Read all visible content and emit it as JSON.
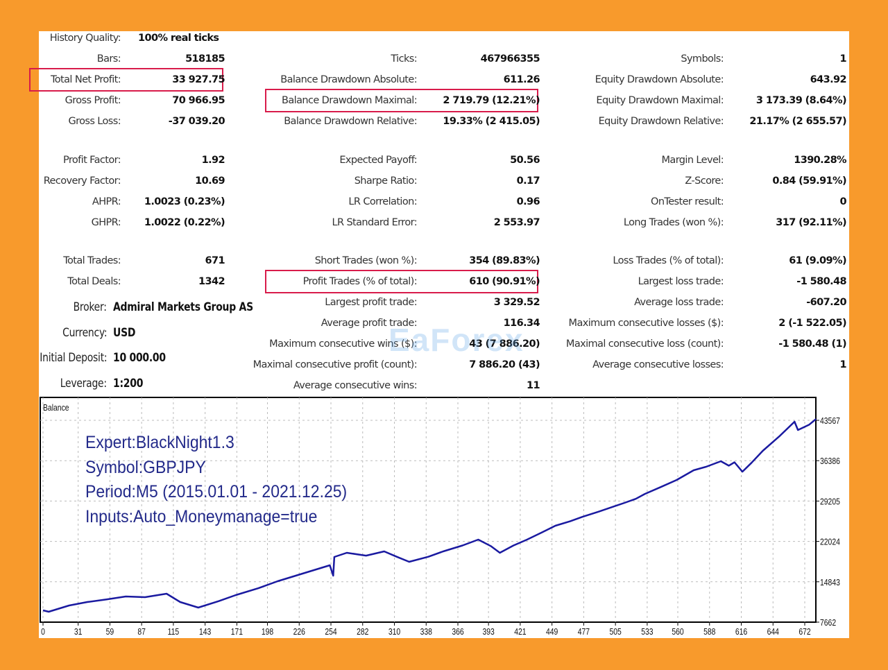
{
  "report": {
    "col1": [
      {
        "label": "History Quality:",
        "value": "100% real ticks",
        "left_value": true
      },
      {
        "label": "Bars:",
        "value": "518185"
      },
      {
        "label": "Total Net Profit:",
        "value": "33 927.75",
        "highlight": true
      },
      {
        "label": "Gross Profit:",
        "value": "70 966.95"
      },
      {
        "label": "Gross Loss:",
        "value": "-37 039.20"
      },
      {
        "label": "Profit Factor:",
        "value": "1.92"
      },
      {
        "label": "Recovery Factor:",
        "value": "10.69"
      },
      {
        "label": "AHPR:",
        "value": "1.0023 (0.23%)"
      },
      {
        "label": "GHPR:",
        "value": "1.0022 (0.22%)"
      },
      {
        "label": "Total Trades:",
        "value": "671"
      },
      {
        "label": "Total Deals:",
        "value": "1342"
      }
    ],
    "settings": [
      {
        "label": "Broker:",
        "value": "Admiral Markets Group AS"
      },
      {
        "label": "Currency:",
        "value": "USD"
      },
      {
        "label": "Initial Deposit:",
        "value": "10 000.00"
      },
      {
        "label": "Leverage:",
        "value": "1:200"
      }
    ],
    "col2": [
      {
        "label": "Ticks:",
        "value": "467966355"
      },
      {
        "label": "Balance Drawdown Absolute:",
        "value": "611.26"
      },
      {
        "label": "Balance Drawdown Maximal:",
        "value": "2 719.79 (12.21%)",
        "highlight": true
      },
      {
        "label": "Balance Drawdown Relative:",
        "value": "19.33% (2 415.05)"
      },
      {
        "label": "Expected Payoff:",
        "value": "50.56"
      },
      {
        "label": "Sharpe Ratio:",
        "value": "0.17"
      },
      {
        "label": "LR Correlation:",
        "value": "0.96"
      },
      {
        "label": "LR Standard Error:",
        "value": "2 553.97"
      },
      {
        "label": "Short Trades (won %):",
        "value": "354 (89.83%)"
      },
      {
        "label": "Profit Trades (% of total):",
        "value": "610 (90.91%)",
        "highlight": true
      },
      {
        "label": "Largest profit trade:",
        "value": "3 329.52"
      },
      {
        "label": "Average profit trade:",
        "value": "116.34"
      },
      {
        "label": "Maximum consecutive wins ($):",
        "value": "43 (7 886.20)"
      },
      {
        "label": "Maximal consecutive profit (count):",
        "value": "7 886.20 (43)"
      },
      {
        "label": "Average consecutive wins:",
        "value": "11"
      }
    ],
    "col3": [
      {
        "label": "Symbols:",
        "value": "1"
      },
      {
        "label": "Equity Drawdown Absolute:",
        "value": "643.92"
      },
      {
        "label": "Equity Drawdown Maximal:",
        "value": "3 173.39 (8.64%)"
      },
      {
        "label": "Equity Drawdown Relative:",
        "value": "21.17% (2 655.57)"
      },
      {
        "label": "Margin Level:",
        "value": "1390.28%"
      },
      {
        "label": "Z-Score:",
        "value": "0.84 (59.91%)"
      },
      {
        "label": "OnTester result:",
        "value": "0"
      },
      {
        "label": "Long Trades (won %):",
        "value": "317 (92.11%)"
      },
      {
        "label": "Loss Trades (% of total):",
        "value": "61 (9.09%)"
      },
      {
        "label": "Largest loss trade:",
        "value": "-1 580.48"
      },
      {
        "label": "Average loss trade:",
        "value": "-607.20"
      },
      {
        "label": "Maximum consecutive losses ($):",
        "value": "2 (-1 522.05)"
      },
      {
        "label": "Maximal consecutive loss (count):",
        "value": "-1 580.48 (1)"
      },
      {
        "label": "Average consecutive losses:",
        "value": "1"
      }
    ]
  },
  "watermark": "EaForex",
  "annotations": [
    "Expert:BlackNight1.3",
    "Symbol:GBPJPY",
    "Period:M5 (2015.01.01 - 2021.12.25)",
    "Inputs:Auto_Moneymanage=true"
  ],
  "colors": {
    "line": "#1a1aa0",
    "highlight": "#d81b4a",
    "background": "#f89a2c"
  },
  "chart_data": {
    "type": "line",
    "title": "Balance",
    "xlabel": "",
    "ylabel": "",
    "x_ticks": [
      0,
      31,
      59,
      87,
      115,
      143,
      171,
      198,
      226,
      254,
      282,
      310,
      338,
      366,
      393,
      421,
      449,
      477,
      505,
      533,
      560,
      588,
      616,
      644,
      672
    ],
    "y_ticks": [
      7662,
      14843,
      22024,
      29205,
      36386,
      43567
    ],
    "xlim": [
      -2,
      684
    ],
    "ylim": [
      7662,
      43567
    ],
    "grid": true,
    "series": [
      {
        "name": "Balance",
        "x": [
          0,
          5,
          23,
          39,
          56,
          73,
          90,
          109,
          121,
          137,
          155,
          170,
          190,
          207,
          231,
          253,
          256,
          257,
          268,
          285,
          301,
          312,
          323,
          340,
          353,
          370,
          384,
          395,
          403,
          415,
          427,
          440,
          452,
          465,
          476,
          490,
          513,
          523,
          531,
          545,
          559,
          574,
          585,
          598,
          605,
          610,
          617,
          625,
          635,
          650,
          663,
          666,
          676,
          682
        ],
        "y": [
          9760,
          9510,
          10620,
          11240,
          11700,
          12230,
          12100,
          12720,
          11240,
          10250,
          11400,
          12480,
          13700,
          14940,
          16420,
          17780,
          15930,
          19260,
          20000,
          19500,
          20250,
          19300,
          18400,
          19300,
          20250,
          21300,
          22340,
          21200,
          20000,
          21300,
          22340,
          23600,
          24810,
          25600,
          26410,
          27300,
          28880,
          29600,
          30480,
          31700,
          32950,
          34680,
          35300,
          36290,
          35500,
          36100,
          34430,
          36000,
          38140,
          40800,
          43320,
          41840,
          42800,
          43800
        ]
      }
    ]
  }
}
